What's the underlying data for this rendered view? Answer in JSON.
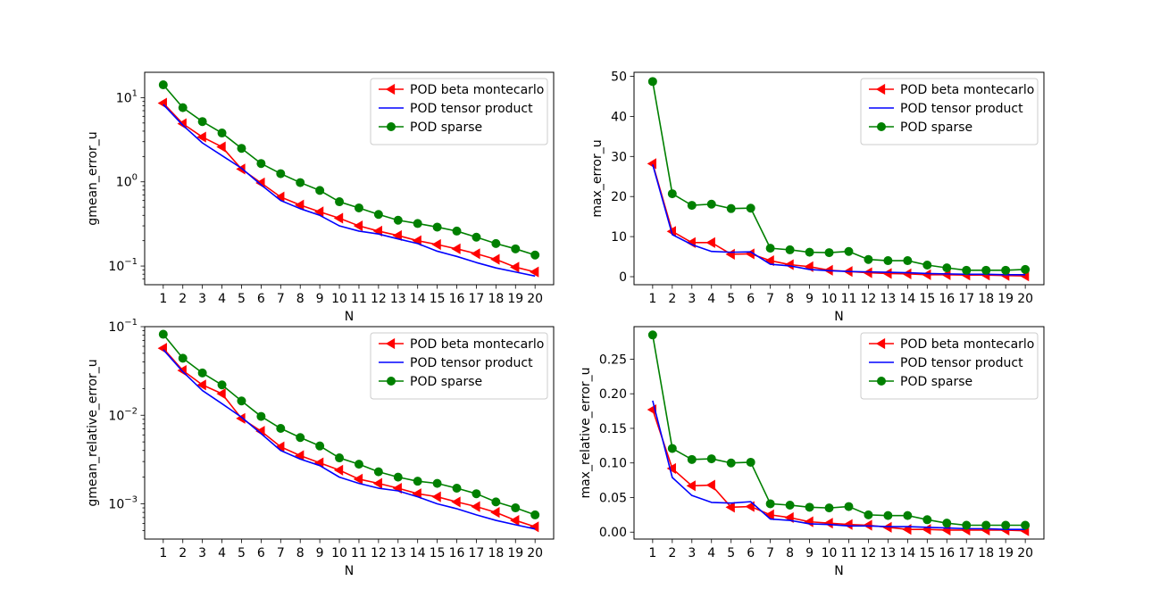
{
  "chart_data": [
    {
      "type": "line",
      "yscale": "log",
      "xlabel": "N",
      "ylabel": "gmean_error_u",
      "ylim": [
        0.06,
        20
      ],
      "y_ticks": [
        {
          "value": 10,
          "base": "10",
          "exp": "1"
        },
        {
          "value": 1,
          "base": "10",
          "exp": "0"
        },
        {
          "value": 0.1,
          "base": "10",
          "exp": "−1"
        }
      ],
      "x": [
        1,
        2,
        3,
        4,
        5,
        6,
        7,
        8,
        9,
        10,
        11,
        12,
        13,
        14,
        15,
        16,
        17,
        18,
        19,
        20
      ],
      "x_tick_labels": [
        "1",
        "2",
        "3",
        "4",
        "5",
        "6",
        "7",
        "8",
        "9",
        "10",
        "11",
        "12",
        "13",
        "14",
        "15",
        "16",
        "17",
        "18",
        "19",
        "20"
      ],
      "legend": "top-right",
      "series": [
        {
          "name": "POD beta montecarlo",
          "color": "#ff0000",
          "marker": "triangle-left",
          "values": [
            8.6,
            4.9,
            3.4,
            2.6,
            1.42,
            0.97,
            0.66,
            0.53,
            0.44,
            0.37,
            0.3,
            0.26,
            0.23,
            0.2,
            0.18,
            0.16,
            0.14,
            0.12,
            0.097,
            0.085
          ]
        },
        {
          "name": "POD tensor product",
          "color": "#0000ff",
          "marker": "none",
          "values": [
            8.3,
            4.7,
            2.9,
            2.05,
            1.45,
            0.92,
            0.6,
            0.48,
            0.4,
            0.3,
            0.26,
            0.24,
            0.21,
            0.185,
            0.15,
            0.13,
            0.11,
            0.095,
            0.085,
            0.076
          ]
        },
        {
          "name": "POD sparse",
          "color": "#008000",
          "marker": "circle",
          "values": [
            14.2,
            7.6,
            5.2,
            3.8,
            2.5,
            1.65,
            1.25,
            0.98,
            0.79,
            0.58,
            0.49,
            0.41,
            0.35,
            0.32,
            0.29,
            0.26,
            0.22,
            0.185,
            0.16,
            0.135
          ]
        }
      ]
    },
    {
      "type": "line",
      "yscale": "linear",
      "xlabel": "N",
      "ylabel": "max_error_u",
      "ylim": [
        -2,
        51
      ],
      "y_ticks": [
        {
          "value": 0,
          "label": "0"
        },
        {
          "value": 10,
          "label": "10"
        },
        {
          "value": 20,
          "label": "20"
        },
        {
          "value": 30,
          "label": "30"
        },
        {
          "value": 40,
          "label": "40"
        },
        {
          "value": 50,
          "label": "50"
        }
      ],
      "x": [
        1,
        2,
        3,
        4,
        5,
        6,
        7,
        8,
        9,
        10,
        11,
        12,
        13,
        14,
        15,
        16,
        17,
        18,
        19,
        20
      ],
      "x_tick_labels": [
        "1",
        "2",
        "3",
        "4",
        "5",
        "6",
        "7",
        "8",
        "9",
        "10",
        "11",
        "12",
        "13",
        "14",
        "15",
        "16",
        "17",
        "18",
        "19",
        "20"
      ],
      "legend": "top-right",
      "series": [
        {
          "name": "POD beta montecarlo",
          "color": "#ff0000",
          "marker": "triangle-left",
          "values": [
            28.2,
            11.3,
            8.5,
            8.5,
            5.6,
            5.7,
            4.0,
            3.0,
            2.5,
            1.6,
            1.3,
            1.0,
            0.8,
            0.7,
            0.5,
            0.5,
            0.4,
            0.4,
            0.3,
            0.2
          ]
        },
        {
          "name": "POD tensor product",
          "color": "#0000ff",
          "marker": "none",
          "values": [
            28.0,
            10.5,
            8.0,
            6.3,
            6.1,
            6.2,
            3.1,
            2.7,
            1.8,
            1.5,
            1.3,
            1.2,
            1.1,
            1.0,
            0.8,
            0.7,
            0.6,
            0.6,
            0.5,
            0.5
          ]
        },
        {
          "name": "POD sparse",
          "color": "#008000",
          "marker": "circle",
          "values": [
            48.7,
            20.7,
            17.8,
            18.1,
            17.0,
            17.1,
            7.1,
            6.7,
            6.1,
            6.0,
            6.3,
            4.3,
            4.0,
            4.0,
            2.9,
            2.2,
            1.6,
            1.6,
            1.6,
            1.8
          ]
        }
      ]
    },
    {
      "type": "line",
      "yscale": "log",
      "xlabel": "N",
      "ylabel": "gmean_relative_error_u",
      "ylim": [
        0.0004,
        0.1
      ],
      "y_ticks": [
        {
          "value": 0.1,
          "base": "10",
          "exp": "−1"
        },
        {
          "value": 0.01,
          "base": "10",
          "exp": "−2"
        },
        {
          "value": 0.001,
          "base": "10",
          "exp": "−3"
        }
      ],
      "x": [
        1,
        2,
        3,
        4,
        5,
        6,
        7,
        8,
        9,
        10,
        11,
        12,
        13,
        14,
        15,
        16,
        17,
        18,
        19,
        20
      ],
      "x_tick_labels": [
        "1",
        "2",
        "3",
        "4",
        "5",
        "6",
        "7",
        "8",
        "9",
        "10",
        "11",
        "12",
        "13",
        "14",
        "15",
        "16",
        "17",
        "18",
        "19",
        "20"
      ],
      "legend": "top-right",
      "series": [
        {
          "name": "POD beta montecarlo",
          "color": "#ff0000",
          "marker": "triangle-left",
          "values": [
            0.057,
            0.032,
            0.022,
            0.0175,
            0.0092,
            0.0066,
            0.0044,
            0.0035,
            0.0029,
            0.0024,
            0.0019,
            0.0017,
            0.0015,
            0.0013,
            0.0012,
            0.00105,
            0.00093,
            0.0008,
            0.00065,
            0.00055
          ]
        },
        {
          "name": "POD tensor product",
          "color": "#0000ff",
          "marker": "none",
          "values": [
            0.055,
            0.031,
            0.019,
            0.0135,
            0.0095,
            0.0062,
            0.004,
            0.0032,
            0.0027,
            0.002,
            0.0017,
            0.0015,
            0.0014,
            0.0012,
            0.001,
            0.00088,
            0.00075,
            0.00065,
            0.00058,
            0.00052
          ]
        },
        {
          "name": "POD sparse",
          "color": "#008000",
          "marker": "circle",
          "values": [
            0.082,
            0.044,
            0.03,
            0.022,
            0.0145,
            0.0097,
            0.0071,
            0.0056,
            0.0045,
            0.0033,
            0.0028,
            0.0023,
            0.002,
            0.0018,
            0.0017,
            0.0015,
            0.0013,
            0.00105,
            0.0009,
            0.00075
          ]
        }
      ]
    },
    {
      "type": "line",
      "yscale": "linear",
      "xlabel": "N",
      "ylabel": "max_relative_error_u",
      "ylim": [
        -0.01,
        0.297
      ],
      "y_ticks": [
        {
          "value": 0.0,
          "label": "0.00"
        },
        {
          "value": 0.05,
          "label": "0.05"
        },
        {
          "value": 0.1,
          "label": "0.10"
        },
        {
          "value": 0.15,
          "label": "0.15"
        },
        {
          "value": 0.2,
          "label": "0.20"
        },
        {
          "value": 0.25,
          "label": "0.25"
        }
      ],
      "x": [
        1,
        2,
        3,
        4,
        5,
        6,
        7,
        8,
        9,
        10,
        11,
        12,
        13,
        14,
        15,
        16,
        17,
        18,
        19,
        20
      ],
      "x_tick_labels": [
        "1",
        "2",
        "3",
        "4",
        "5",
        "6",
        "7",
        "8",
        "9",
        "10",
        "11",
        "12",
        "13",
        "14",
        "15",
        "16",
        "17",
        "18",
        "19",
        "20"
      ],
      "legend": "top-right",
      "series": [
        {
          "name": "POD beta montecarlo",
          "color": "#ff0000",
          "marker": "triangle-left",
          "values": [
            0.177,
            0.092,
            0.067,
            0.068,
            0.036,
            0.037,
            0.025,
            0.021,
            0.015,
            0.013,
            0.011,
            0.01,
            0.007,
            0.004,
            0.004,
            0.003,
            0.003,
            0.003,
            0.003,
            0.002
          ]
        },
        {
          "name": "POD tensor product",
          "color": "#0000ff",
          "marker": "none",
          "values": [
            0.19,
            0.079,
            0.053,
            0.043,
            0.042,
            0.044,
            0.019,
            0.017,
            0.012,
            0.011,
            0.009,
            0.009,
            0.008,
            0.008,
            0.007,
            0.006,
            0.005,
            0.005,
            0.004,
            0.004
          ]
        },
        {
          "name": "POD sparse",
          "color": "#008000",
          "marker": "circle",
          "values": [
            0.285,
            0.121,
            0.105,
            0.106,
            0.1,
            0.101,
            0.041,
            0.039,
            0.036,
            0.035,
            0.037,
            0.025,
            0.024,
            0.024,
            0.018,
            0.013,
            0.01,
            0.01,
            0.01,
            0.01
          ]
        }
      ]
    }
  ]
}
